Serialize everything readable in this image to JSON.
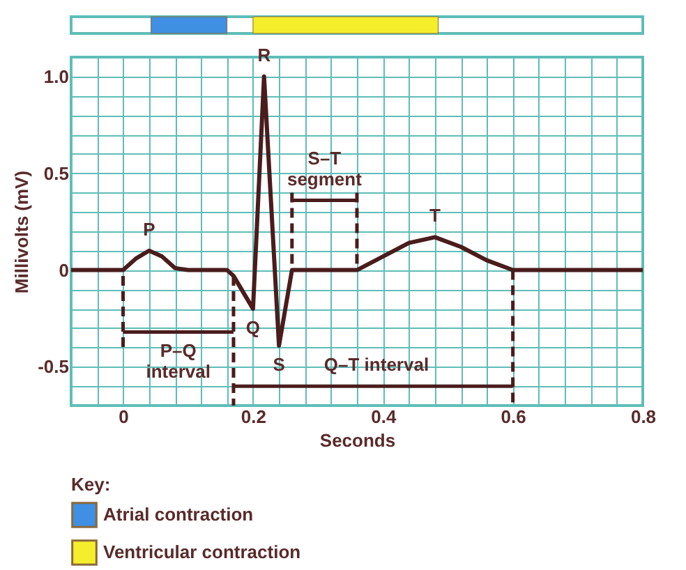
{
  "chart_data": [
    {
      "type": "bar",
      "orientation": "horizontal",
      "categories": [
        null
      ],
      "xlim": [
        -0.08,
        0.8
      ],
      "tick_labels": false,
      "legend": "bottom",
      "legend_title": "Key:",
      "series": [
        {
          "name": "Atrial contraction",
          "color": "#3f8fe3",
          "base": [
            0.043
          ],
          "values": [
            0.117
          ]
        },
        {
          "name": "Ventricular contraction",
          "color": "#f5ee2a",
          "base": [
            0.2
          ],
          "values": [
            0.285
          ]
        }
      ]
    },
    {
      "type": "line",
      "xlabel": "Seconds",
      "ylabel": "Millivolts (mV)",
      "grid": true,
      "line_style": "solid",
      "marker": "none",
      "xlim": [
        -0.08,
        0.8
      ],
      "ylim": [
        -0.7,
        1.1
      ],
      "xticks": [
        {
          "value": -0.08,
          "label": null
        },
        {
          "value": -0.04,
          "label": null
        },
        0,
        {
          "value": 0.04,
          "label": null
        },
        {
          "value": 0.08,
          "label": null
        },
        {
          "value": 0.12,
          "label": null
        },
        {
          "value": 0.16,
          "label": null
        },
        0.2,
        {
          "value": 0.24,
          "label": null
        },
        {
          "value": 0.28,
          "label": null
        },
        {
          "value": 0.32,
          "label": null
        },
        {
          "value": 0.36,
          "label": null
        },
        0.4,
        {
          "value": 0.44,
          "label": null
        },
        {
          "value": 0.48,
          "label": null
        },
        {
          "value": 0.52,
          "label": null
        },
        {
          "value": 0.56,
          "label": null
        },
        0.6,
        {
          "value": 0.64,
          "label": null
        },
        {
          "value": 0.68,
          "label": null
        },
        {
          "value": 0.72,
          "label": null
        },
        {
          "value": 0.76,
          "label": null
        },
        0.8
      ],
      "yticks": [
        {
          "value": -0.7,
          "label": null
        },
        {
          "value": -0.6,
          "label": null
        },
        -0.5,
        {
          "value": -0.4,
          "label": null
        },
        {
          "value": -0.3,
          "label": null
        },
        {
          "value": -0.2,
          "label": null
        },
        {
          "value": -0.1,
          "label": null
        },
        0,
        {
          "value": 0.1,
          "label": null
        },
        {
          "value": 0.2,
          "label": null
        },
        {
          "value": 0.3,
          "label": null
        },
        {
          "value": 0.4,
          "label": null
        },
        0.5,
        {
          "value": 0.6,
          "label": null
        },
        {
          "value": 0.7,
          "label": null
        },
        {
          "value": 0.8,
          "label": null
        },
        {
          "value": 0.9,
          "label": null
        },
        {
          "value": 1.0,
          "label": "1.0"
        },
        {
          "value": 1.1,
          "label": null
        }
      ],
      "series": [
        {
          "color": "#4a1c1c",
          "x": [
            -0.08,
            0.0,
            0.02,
            0.04,
            0.06,
            0.08,
            0.1,
            0.16,
            0.17,
            0.2,
            0.217,
            0.24,
            0.26,
            0.36,
            0.4,
            0.44,
            0.48,
            0.52,
            0.56,
            0.6,
            0.8
          ],
          "values": [
            0,
            0,
            0.06,
            0.1,
            0.07,
            0.01,
            0,
            0,
            -0.03,
            -0.2,
            1.0,
            -0.39,
            0,
            0,
            0.07,
            0.14,
            0.17,
            0.12,
            0.05,
            0,
            0
          ]
        },
        {
          "color": "#4a1c1c",
          "type": "line",
          "line_style": "dashed",
          "x": [
            0,
            0
          ],
          "values": [
            -0.03,
            -0.4
          ]
        },
        {
          "color": "#4a1c1c",
          "type": "line",
          "line_style": "dashed",
          "x": [
            0.17,
            0.17
          ],
          "values": [
            -0.03,
            -0.7
          ]
        },
        {
          "color": "#4a1c1c",
          "type": "line",
          "line_style": "dashed",
          "x": [
            0.26,
            0.26
          ],
          "values": [
            0.4,
            0
          ]
        },
        {
          "color": "#4a1c1c",
          "type": "line",
          "line_style": "dashed",
          "x": [
            0.36,
            0.36
          ],
          "values": [
            0.4,
            0
          ]
        },
        {
          "color": "#4a1c1c",
          "type": "line",
          "line_style": "dashed",
          "x": [
            0.6,
            0.6
          ],
          "values": [
            0,
            -0.7
          ]
        },
        {
          "color": "#4a1c1c",
          "type": "line",
          "line_style": "solid",
          "x": [
            0,
            0.17
          ],
          "values": [
            -0.32,
            -0.32
          ]
        },
        {
          "color": "#4a1c1c",
          "type": "line",
          "line_style": "solid",
          "x": [
            0.26,
            0.36
          ],
          "values": [
            0.36,
            0.36
          ]
        },
        {
          "color": "#4a1c1c",
          "type": "line",
          "line_style": "solid",
          "x": [
            0.17,
            0.6
          ],
          "values": [
            -0.6,
            -0.6
          ]
        }
      ],
      "annotations": [
        {
          "text": "P",
          "x": 0.04,
          "y": 0.1
        },
        {
          "text": "Q",
          "x": 0.2,
          "y": -0.2
        },
        {
          "text": "R",
          "x": 0.217,
          "y": 1.0
        },
        {
          "text": "S",
          "x": 0.24,
          "y": -0.39
        },
        {
          "text": "T",
          "x": 0.48,
          "y": 0.17
        },
        {
          "text": "S–T\nsegment",
          "x": 0.31,
          "y": 0.36
        },
        {
          "text": "P–Q\ninterval",
          "x": 0.085,
          "y": -0.32
        },
        {
          "text": "Q–T interval",
          "x": 0.39,
          "y": -0.6
        }
      ]
    }
  ]
}
